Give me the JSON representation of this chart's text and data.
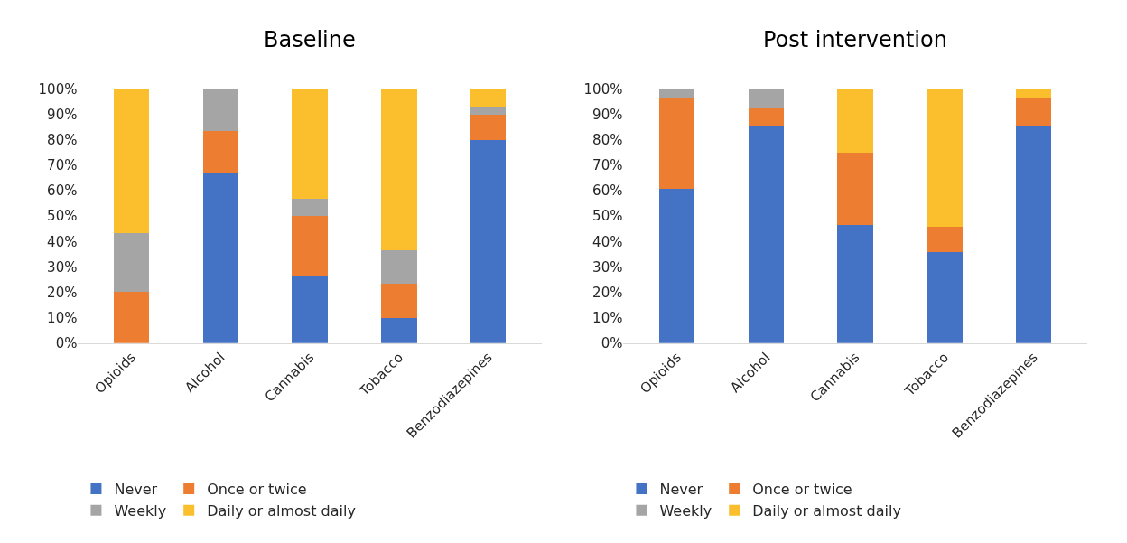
{
  "chart_data": [
    {
      "type": "bar",
      "title": "Baseline",
      "stacked": true,
      "legend": "bottom",
      "grid": false,
      "categories": [
        "Opioids",
        "Alcohol",
        "Cannabis",
        "Tobacco",
        "Benzodiazepines"
      ],
      "ylim": [
        0,
        100
      ],
      "yticks": [
        {
          "value": 0,
          "label": "0%"
        },
        {
          "value": 10,
          "label": "10%"
        },
        {
          "value": 20,
          "label": "20%"
        },
        {
          "value": 30,
          "label": "30%"
        },
        {
          "value": 40,
          "label": "40%"
        },
        {
          "value": 50,
          "label": "50%"
        },
        {
          "value": 60,
          "label": "60%"
        },
        {
          "value": 70,
          "label": "70%"
        },
        {
          "value": 80,
          "label": "80%"
        },
        {
          "value": 90,
          "label": "90%"
        },
        {
          "value": 100,
          "label": "100%"
        }
      ],
      "series": [
        {
          "name": "Never",
          "color": "#4472c4",
          "values": [
            0,
            66.7,
            26.7,
            10,
            80
          ]
        },
        {
          "name": "Once or twice",
          "color": "#ed7d31",
          "values": [
            20,
            16.7,
            23.3,
            13.3,
            10
          ]
        },
        {
          "name": "Weekly",
          "color": "#a5a5a5",
          "values": [
            23.3,
            16.6,
            6.7,
            13.4,
            3.3
          ]
        },
        {
          "name": "Daily or almost daily",
          "color": "#fbbf2d",
          "values": [
            56.7,
            0,
            43.3,
            63.3,
            6.7
          ]
        }
      ]
    },
    {
      "type": "bar",
      "title": "Post intervention",
      "stacked": true,
      "legend": "bottom",
      "grid": false,
      "categories": [
        "Opioids",
        "Alcohol",
        "Cannabis",
        "Tobacco",
        "Benzodiazepines"
      ],
      "ylim": [
        0,
        100
      ],
      "yticks": [
        {
          "value": 0,
          "label": "0%"
        },
        {
          "value": 10,
          "label": "10%"
        },
        {
          "value": 20,
          "label": "20%"
        },
        {
          "value": 30,
          "label": "30%"
        },
        {
          "value": 40,
          "label": "40%"
        },
        {
          "value": 50,
          "label": "50%"
        },
        {
          "value": 60,
          "label": "60%"
        },
        {
          "value": 70,
          "label": "70%"
        },
        {
          "value": 80,
          "label": "80%"
        },
        {
          "value": 90,
          "label": "90%"
        },
        {
          "value": 100,
          "label": "100%"
        }
      ],
      "series": [
        {
          "name": "Never",
          "color": "#4472c4",
          "values": [
            60.7,
            85.7,
            46.4,
            35.7,
            85.7
          ]
        },
        {
          "name": "Once or twice",
          "color": "#ed7d31",
          "values": [
            35.7,
            7.1,
            28.6,
            10,
            10.7
          ]
        },
        {
          "name": "Weekly",
          "color": "#a5a5a5",
          "values": [
            3.6,
            7.2,
            0,
            0,
            0
          ]
        },
        {
          "name": "Daily or almost daily",
          "color": "#fbbf2d",
          "values": [
            0,
            0,
            25,
            54.3,
            3.6
          ]
        }
      ]
    }
  ]
}
